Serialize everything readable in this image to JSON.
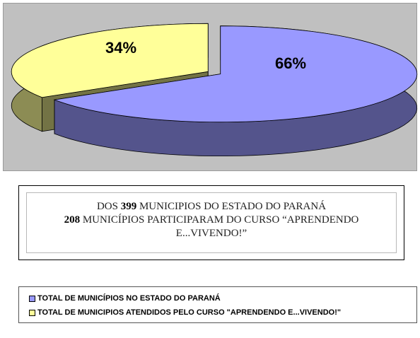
{
  "chart_data": {
    "type": "pie",
    "slices": [
      {
        "label": "TOTAL DE MUNICÍPIOS NO ESTADO DO PARANÁ",
        "value": 66,
        "display": "66%",
        "color": "#9999ff"
      },
      {
        "label": "TOTAL DE MUNICIPIOS ATENDIDOS PELO CURSO \"APRENDENDO E...VIVENDO!\"",
        "value": 34,
        "display": "34%",
        "color": "#ffff99"
      }
    ],
    "style": "3d-exploded",
    "background": "#c0c0c0",
    "legend_position": "bottom"
  },
  "caption": {
    "line1_prefix": "DOS ",
    "line1_number": "399",
    "line1_suffix": " MUNICIPIOS DO ESTADO DO PARANÁ",
    "line2_number": "208",
    "line2_suffix": " MUNICÍPIOS PARTICIPARAM DO CURSO “APRENDENDO E...VIVENDO!”"
  },
  "legend": {
    "items": [
      {
        "label": "TOTAL DE MUNICÍPIOS NO ESTADO DO PARANÁ",
        "color": "#9999ff"
      },
      {
        "label": "TOTAL DE MUNICIPIOS ATENDIDOS PELO CURSO \"APRENDENDO E...VIVENDO!\"",
        "color": "#ffff99"
      }
    ]
  }
}
